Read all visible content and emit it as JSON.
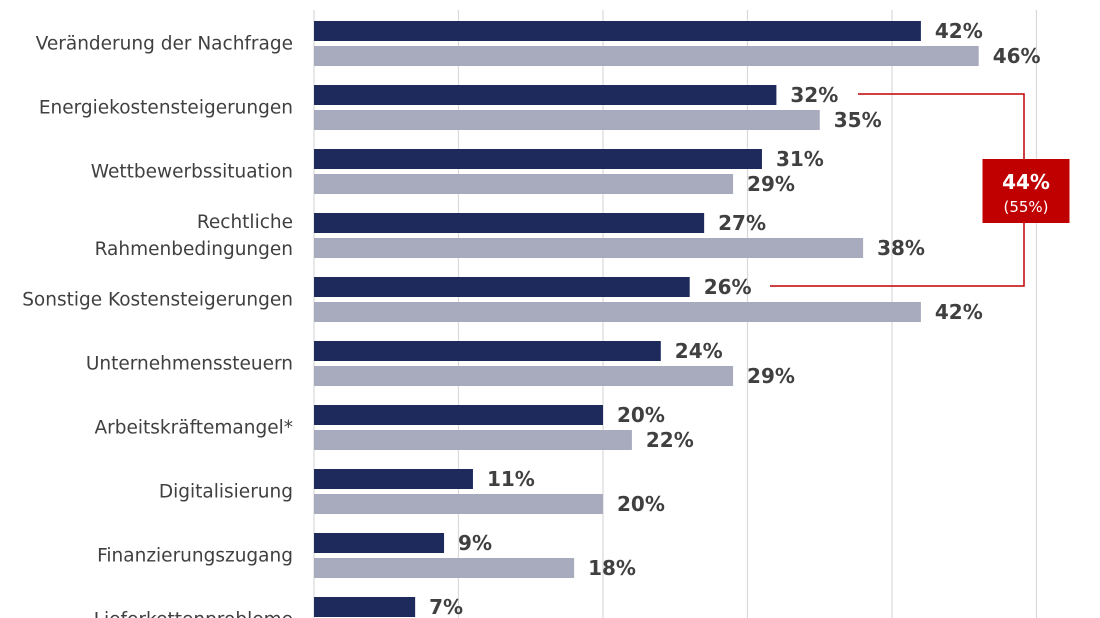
{
  "chart_data": {
    "type": "bar",
    "orientation": "horizontal",
    "categories": [
      [
        "Veränderung der Nachfrage"
      ],
      [
        "Energiekostensteigerungen"
      ],
      [
        "Wettbewerbssituation"
      ],
      [
        "Rechtliche",
        "Rahmenbedingungen"
      ],
      [
        "Sonstige Kostensteigerungen"
      ],
      [
        "Unternehmenssteuern"
      ],
      [
        "Arbeitskräftemangel*"
      ],
      [
        "Digitalisierung"
      ],
      [
        "Finanzierungszugang"
      ],
      [
        "Lieferkettenprobleme"
      ]
    ],
    "series": [
      {
        "values": [
          42,
          32,
          31,
          27,
          26,
          24,
          20,
          11,
          9,
          7
        ],
        "color": "#1f2a5c"
      },
      {
        "values": [
          46,
          35,
          29,
          38,
          42,
          29,
          22,
          20,
          18,
          null
        ],
        "color": "#a7abbd"
      }
    ],
    "value_suffix": "%",
    "xlim": [
      0,
      50
    ],
    "grid": true,
    "callout": {
      "value": "44%",
      "sub": "(55%)",
      "color": "#c00000",
      "spans_categories": [
        "Energiekostensteigerungen",
        "Sonstige Kostensteigerungen"
      ]
    }
  }
}
